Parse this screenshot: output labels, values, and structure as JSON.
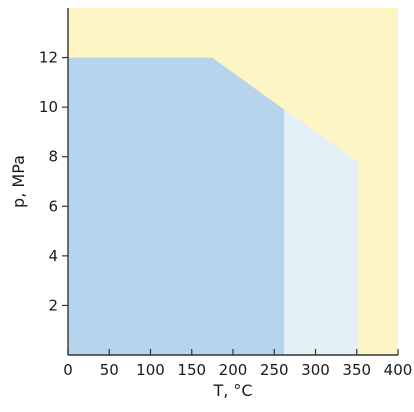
{
  "chart_data": {
    "type": "area",
    "title": "",
    "xlabel": "T, °C",
    "ylabel": "p, MPa",
    "xlim": [
      0,
      400
    ],
    "ylim": [
      0,
      14
    ],
    "x_ticks": [
      {
        "value": 0,
        "label": "0"
      },
      {
        "value": 50,
        "label": "50"
      },
      {
        "value": 100,
        "label": "100"
      },
      {
        "value": 150,
        "label": "150"
      },
      {
        "value": 200,
        "label": "200"
      },
      {
        "value": 250,
        "label": "250"
      },
      {
        "value": 300,
        "label": "300"
      },
      {
        "value": 350,
        "label": "350"
      },
      {
        "value": 400,
        "label": "400"
      }
    ],
    "y_ticks": [
      {
        "value": 2,
        "label": "2"
      },
      {
        "value": 4,
        "label": "4"
      },
      {
        "value": 6,
        "label": "6"
      },
      {
        "value": 8,
        "label": "8"
      },
      {
        "value": 10,
        "label": "10"
      },
      {
        "value": 12,
        "label": "12"
      }
    ],
    "grid": false,
    "legend": "none",
    "regions": [
      {
        "fill": "#fdf5c4",
        "points": [
          [
            0,
            0
          ],
          [
            400,
            0
          ],
          [
            400,
            14
          ],
          [
            0,
            14
          ]
        ]
      },
      {
        "fill": "#e4f0f8",
        "points": [
          [
            262,
            0
          ],
          [
            352,
            0
          ],
          [
            352,
            7.8
          ],
          [
            262,
            9.9
          ]
        ]
      },
      {
        "fill": "#b6d5ed",
        "points": [
          [
            0,
            0
          ],
          [
            262,
            0
          ],
          [
            262,
            9.9
          ],
          [
            175,
            12
          ],
          [
            0,
            12
          ]
        ]
      }
    ]
  }
}
